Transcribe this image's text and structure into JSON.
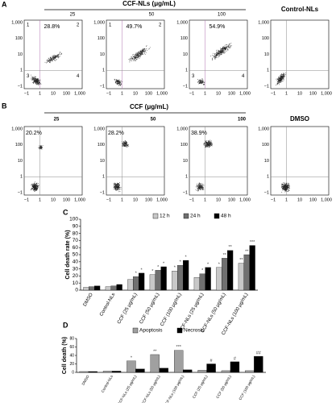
{
  "flow_panels": [
    {
      "label": "A",
      "title": "CCF-NLs (μg/mL)",
      "group_labels": [
        "25",
        "50",
        "100"
      ],
      "control_label": "Control-NLs",
      "yticks": [
        "1,000",
        "100",
        "10",
        "1",
        "−1"
      ],
      "xticks": [
        "−1",
        "1",
        "10",
        "100",
        "1,000"
      ],
      "plots": [
        {
          "percent": "28.8%",
          "quadrants": [
            "1",
            "2",
            "3",
            "4"
          ]
        },
        {
          "percent": "49.7%",
          "quadrants": [
            "1",
            "2"
          ]
        },
        {
          "percent": "54.9%",
          "quadrants": [
            "3",
            "4"
          ]
        },
        {
          "percent": null,
          "quadrants": []
        }
      ]
    },
    {
      "label": "B",
      "title": "CCF (μg/mL)",
      "group_labels": [
        "25",
        "50",
        "100"
      ],
      "control_label": "DMSO",
      "yticks": [
        "1,000",
        "100",
        "10",
        "1",
        "−1"
      ],
      "xticks": [
        "−1",
        "1",
        "10",
        "100",
        "1,000"
      ],
      "plots": [
        {
          "percent": "20.2%",
          "quadrants": []
        },
        {
          "percent": "28.2%",
          "quadrants": []
        },
        {
          "percent": "38.9%",
          "quadrants": []
        },
        {
          "percent": null,
          "quadrants": []
        }
      ]
    }
  ],
  "chart_data": [
    {
      "type": "bar",
      "panel_label": "C",
      "y_label": "Cell death rate (%)",
      "categories": [
        "DMSO",
        "Control-NLs",
        "CCF (25 μg/mL)",
        "CCF (50 μg/mL)",
        "CCF (100 μg/mL)",
        "CCF-NLs (25 μg/mL)",
        "CCF-NLs (50 μg/mL)",
        "CCF-NLs (100 μg/mL)"
      ],
      "series": [
        {
          "name": "12 h",
          "color": "#c8c8c8",
          "values": [
            4,
            5,
            15,
            22,
            27,
            18,
            32,
            38
          ],
          "significance": [
            null,
            null,
            null,
            "*",
            "*",
            null,
            "*",
            "**"
          ]
        },
        {
          "name": "24 h",
          "color": "#707070",
          "values": [
            5,
            6,
            19,
            28,
            35,
            23,
            45,
            50
          ],
          "significance": [
            null,
            null,
            "*",
            "*",
            "*",
            "*",
            "**",
            "**"
          ]
        },
        {
          "name": "48 h",
          "color": "#000000",
          "values": [
            6,
            8,
            24,
            33,
            42,
            32,
            56,
            63
          ],
          "significance": [
            null,
            null,
            "*",
            "*",
            "*",
            "*",
            "**",
            "***"
          ]
        }
      ],
      "ylim": [
        0,
        100
      ],
      "yticks": [
        0,
        10,
        20,
        30,
        40,
        50,
        60,
        70,
        80,
        90,
        100
      ]
    },
    {
      "type": "bar",
      "panel_label": "D",
      "y_label": "Cell death (%)",
      "categories": [
        "DMSO",
        "Control-NLs",
        "CCF-NLs (25 μg/mL)",
        "CCF-NLs (50 μg/mL)",
        "CCF-NLs (100 μg/mL)",
        "CCF (25 μg/mL)",
        "CCF (50 μg/mL)",
        "CCF (100 μg/mL)"
      ],
      "series": [
        {
          "name": "Apoptosis",
          "color": "#a0a0a0",
          "values": [
            2,
            3,
            27,
            42,
            52,
            5,
            4,
            4
          ],
          "significance": [
            null,
            null,
            "*",
            "**",
            "***",
            null,
            null,
            null
          ]
        },
        {
          "name": "Necrosis",
          "color": "#000000",
          "values": [
            2,
            3,
            8,
            10,
            6,
            20,
            25,
            38
          ],
          "significance": [
            null,
            null,
            null,
            null,
            null,
            "#",
            "#",
            "##"
          ]
        }
      ],
      "ylim": [
        0,
        80
      ],
      "yticks": [
        0,
        20,
        40,
        60,
        80
      ]
    }
  ]
}
